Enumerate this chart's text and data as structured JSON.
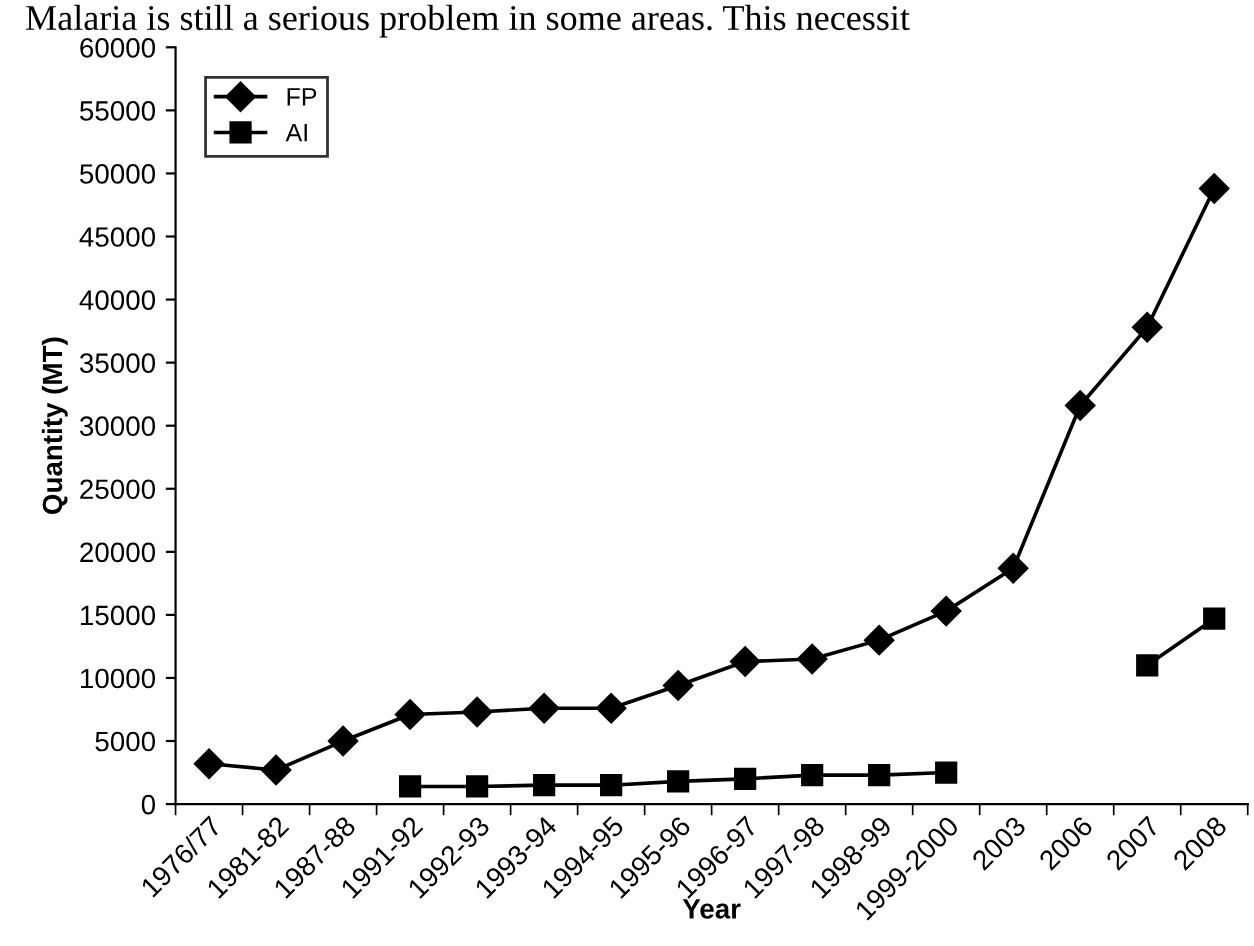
{
  "chart_data": {
    "type": "line",
    "xlabel": "Year",
    "ylabel": "Quantity (MT)",
    "annotations": [
      "Malaria is still a serious problem in some areas. This necessit"
    ],
    "categories": [
      "1976/77",
      "1981-82",
      "1987-88",
      "1991-92",
      "1992-93",
      "1993-94",
      "1994-95",
      "1995-96",
      "1996-97",
      "1997-98",
      "1998-99",
      "1999-2000",
      "2003",
      "2006",
      "2007",
      "2008"
    ],
    "series": [
      {
        "name": "FP",
        "color": "#000000",
        "marker": "diamond",
        "values": [
          3200,
          2700,
          5000,
          7100,
          7300,
          7600,
          7600,
          9400,
          11300,
          11500,
          13000,
          15300,
          18700,
          31600,
          37800,
          48800
        ]
      },
      {
        "name": "AI",
        "color": "#000000",
        "marker": "square",
        "values": [
          null,
          null,
          null,
          1400,
          1400,
          1500,
          1500,
          1800,
          2000,
          2300,
          2300,
          2500,
          null,
          null,
          11000,
          14700
        ]
      }
    ],
    "ylim": [
      0,
      60000
    ],
    "yticks": [
      0,
      5000,
      10000,
      15000,
      20000,
      25000,
      30000,
      35000,
      40000,
      45000,
      50000,
      55000,
      60000
    ],
    "grid": false,
    "legend": "top left",
    "line_style": "solid"
  }
}
